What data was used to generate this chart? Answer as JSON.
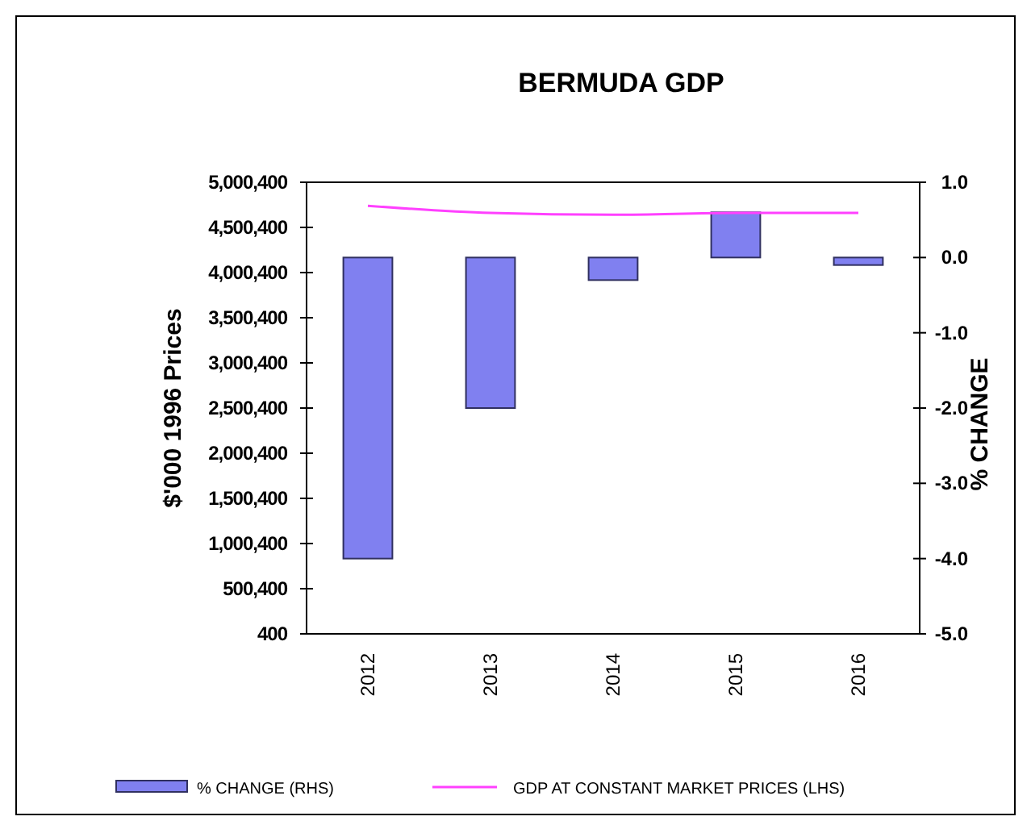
{
  "chart_data": {
    "type": "bar",
    "title": "BERMUDA GDP",
    "ylabel": "$'000 1996 Prices",
    "y2label": "% CHANGE",
    "categories": [
      "2012",
      "2013",
      "2014",
      "2015",
      "2016"
    ],
    "series": [
      {
        "name": "% CHANGE (RHS)",
        "axis": "y2",
        "color": "#8080f0",
        "values": [
          -4.0,
          -2.0,
          -0.3,
          0.6,
          -0.1
        ]
      },
      {
        "name": "GDP AT CONSTANT MARKET PRICES (LHS)",
        "type": "line",
        "axis": "y",
        "color": "#ff40ff",
        "values": [
          4740000,
          4660000,
          4640000,
          4660000,
          4660000
        ]
      }
    ],
    "ylim": [
      400,
      5000400
    ],
    "yticks": [
      {
        "value": 400,
        "label": "400"
      },
      {
        "value": 500400,
        "label": "500,400"
      },
      {
        "value": 1000400,
        "label": "1,000,400"
      },
      {
        "value": 1500400,
        "label": "1,500,400"
      },
      {
        "value": 2000400,
        "label": "2,000,400"
      },
      {
        "value": 2500400,
        "label": "2,500,400"
      },
      {
        "value": 3000400,
        "label": "3,000,400"
      },
      {
        "value": 3500400,
        "label": "3,500,400"
      },
      {
        "value": 4000400,
        "label": "4,000,400"
      },
      {
        "value": 4500400,
        "label": "4,500,400"
      },
      {
        "value": 5000400,
        "label": "5,000,400"
      }
    ],
    "y2lim": [
      -5,
      1
    ],
    "y2ticks": [
      {
        "value": 1,
        "label": "1.0"
      },
      {
        "value": 0,
        "label": "0.0"
      },
      {
        "value": -1,
        "label": "-1.0"
      },
      {
        "value": -2,
        "label": "-2.0"
      },
      {
        "value": -3,
        "label": "-3.0"
      },
      {
        "value": -4,
        "label": "-4.0"
      },
      {
        "value": -5,
        "label": "-5.0"
      }
    ],
    "legend": "bottom",
    "grid": false
  }
}
